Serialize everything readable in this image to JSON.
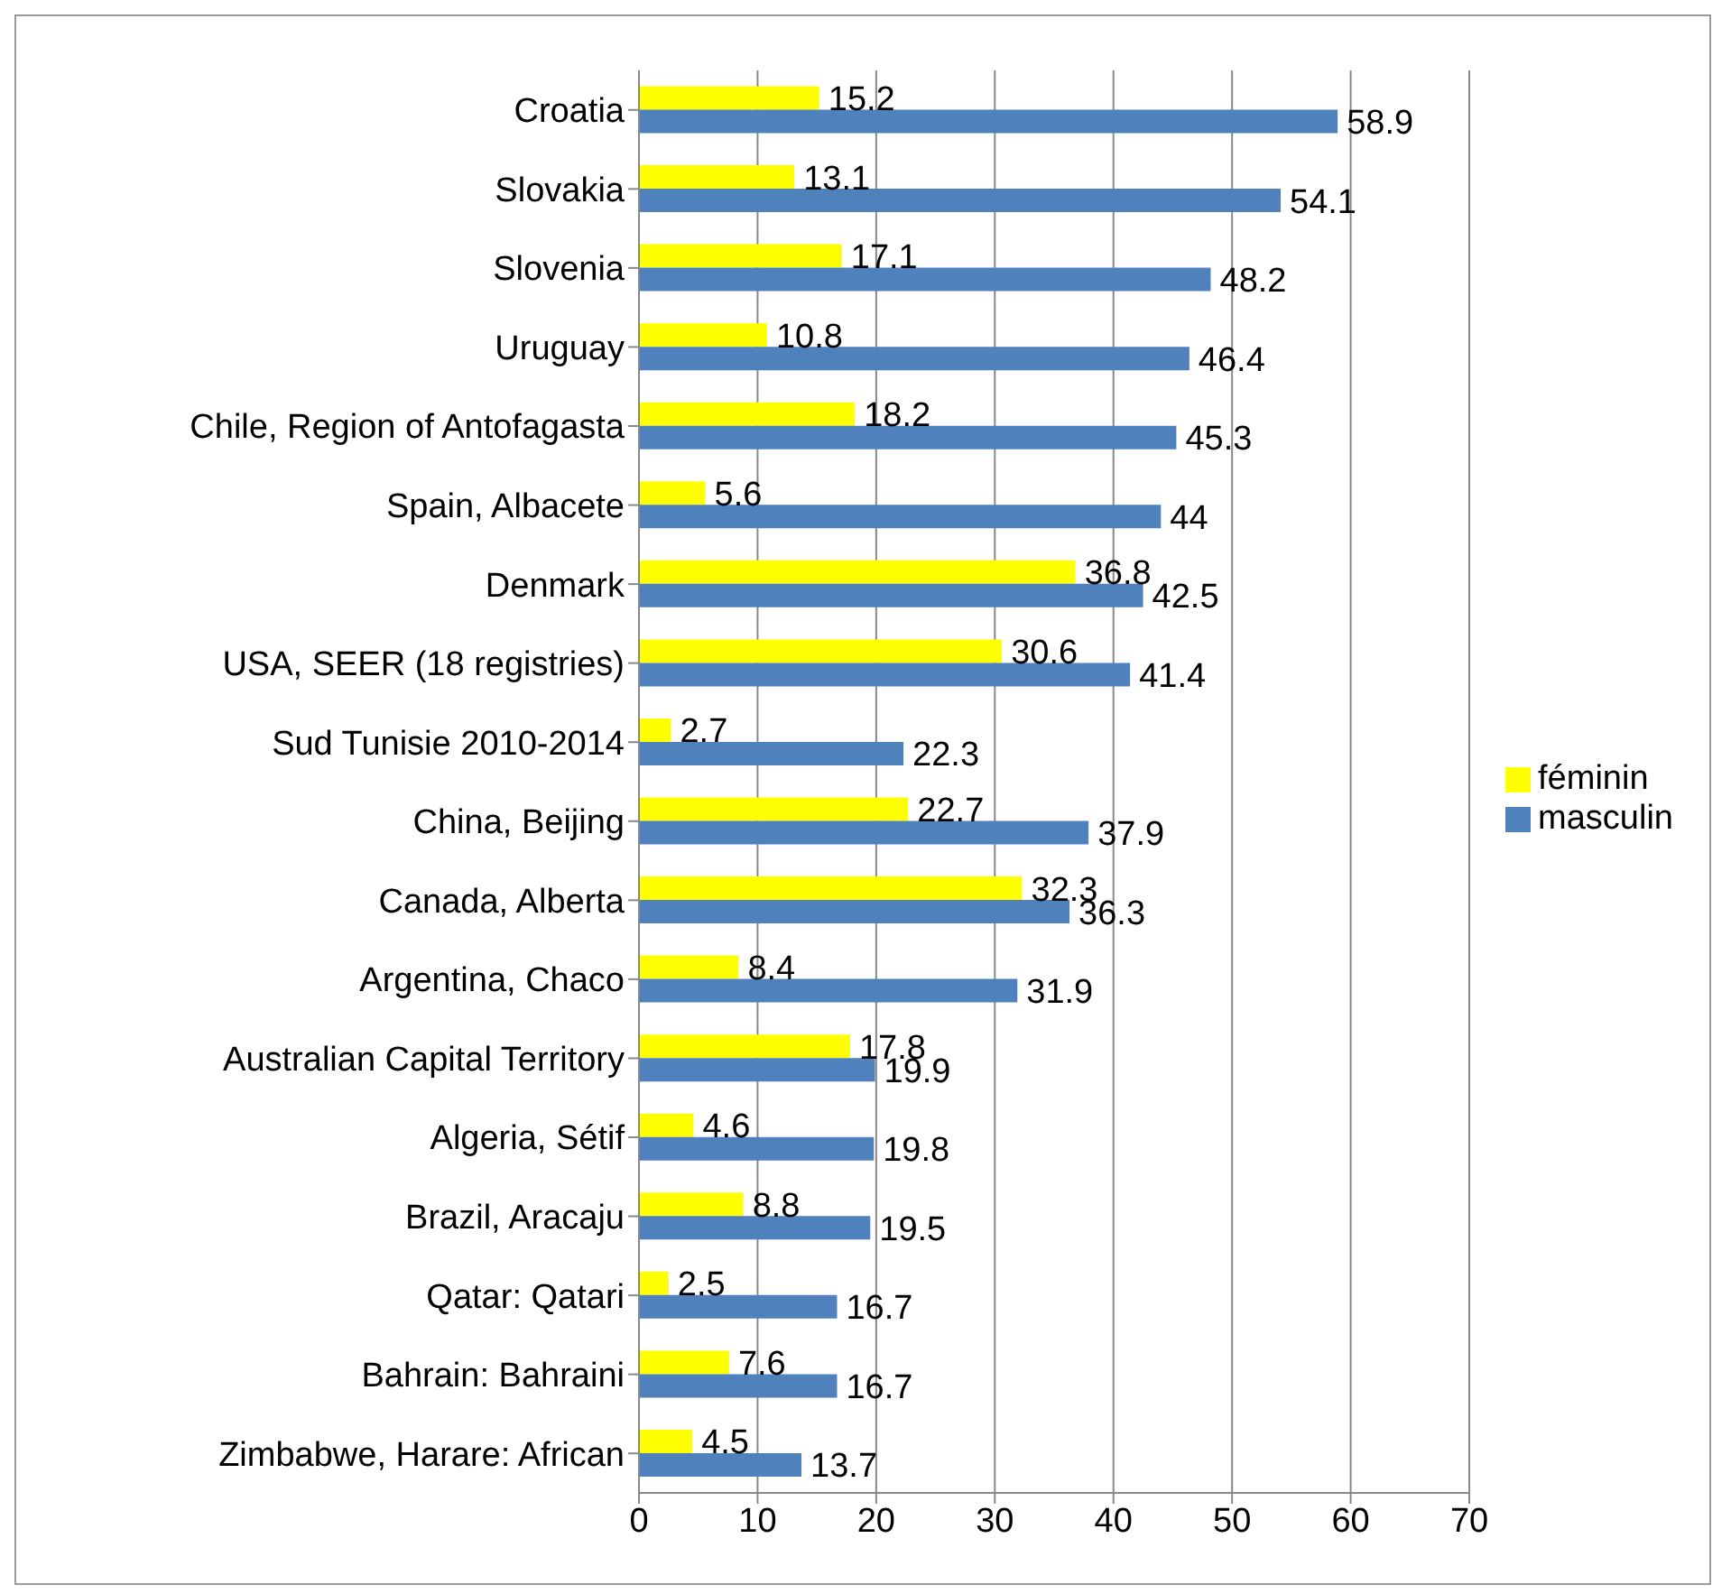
{
  "chart_data": {
    "type": "bar",
    "orientation": "horizontal",
    "categories": [
      "Croatia",
      "Slovakia",
      "Slovenia",
      "Uruguay",
      "Chile, Region of Antofagasta",
      "Spain, Albacete",
      "Denmark",
      "USA, SEER (18 registries)",
      "Sud Tunisie 2010-2014",
      "China, Beijing",
      "Canada, Alberta",
      "Argentina, Chaco",
      "Australian Capital Territory",
      "Algeria, Sétif",
      "Brazil, Aracaju",
      "Qatar: Qatari",
      "Bahrain: Bahraini",
      "Zimbabwe, Harare: African"
    ],
    "series": [
      {
        "name": "féminin",
        "color": "#ffff00",
        "values": [
          15.2,
          13.1,
          17.1,
          10.8,
          18.2,
          5.6,
          36.8,
          30.6,
          2.7,
          22.7,
          32.3,
          8.4,
          17.8,
          4.6,
          8.8,
          2.5,
          7.6,
          4.5
        ]
      },
      {
        "name": "masculin",
        "color": "#4f81bd",
        "values": [
          58.9,
          54.1,
          48.2,
          46.4,
          45.3,
          44,
          42.5,
          41.4,
          22.3,
          37.9,
          36.3,
          31.9,
          19.9,
          19.8,
          19.5,
          16.7,
          16.7,
          13.7
        ]
      }
    ],
    "xlim": [
      0,
      70
    ],
    "xticks": [
      0,
      10,
      20,
      30,
      40,
      50,
      60,
      70
    ],
    "grid": "x",
    "legend": "right",
    "data_labels": true
  }
}
